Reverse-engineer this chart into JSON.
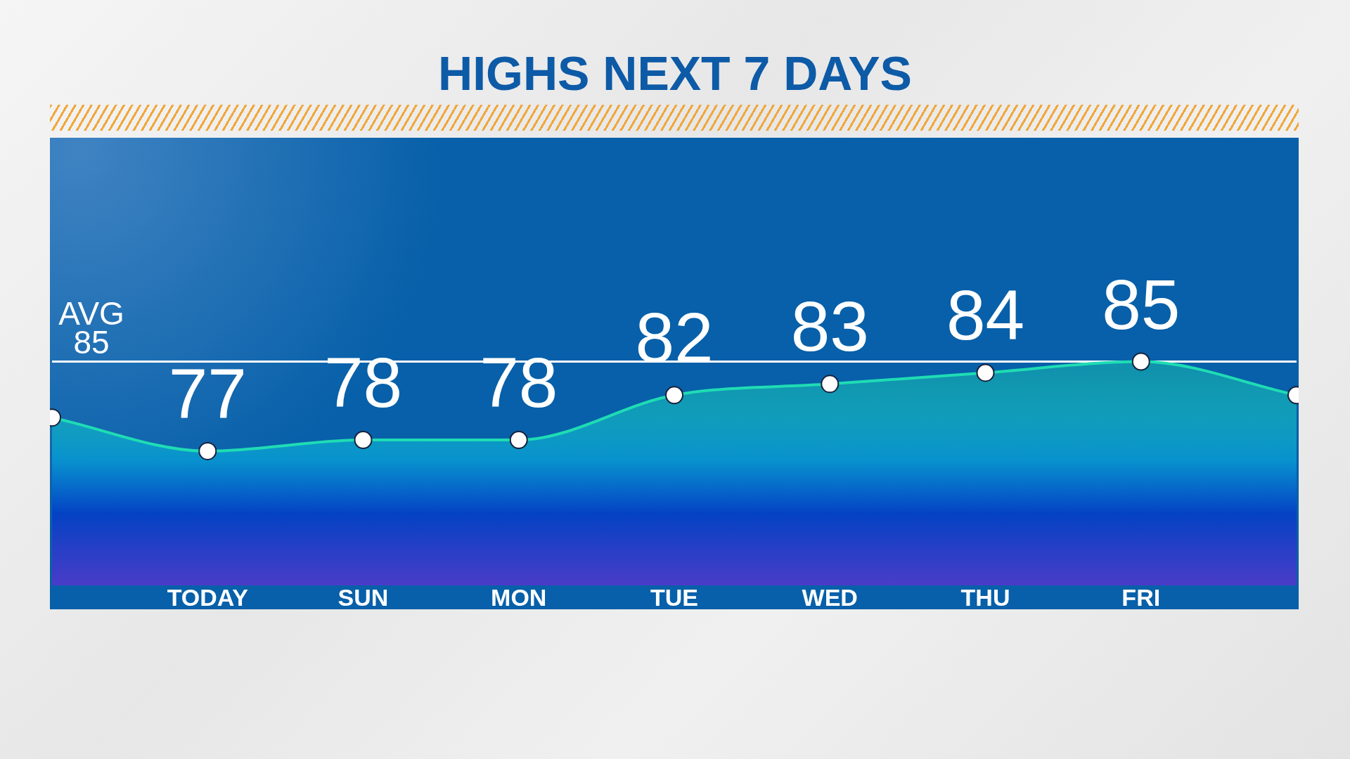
{
  "chart_data": {
    "type": "area",
    "title": "HIGHS NEXT 7 DAYS",
    "categories": [
      null,
      "TODAY",
      "SUN",
      "MON",
      "TUE",
      "WED",
      "THU",
      "FRI",
      null
    ],
    "series": [
      {
        "color": "#1fdcb4",
        "values": [
          80,
          77,
          78,
          78,
          82,
          83,
          84,
          85,
          82
        ],
        "value_labels": [
          null,
          "77",
          "78",
          "78",
          "82",
          "83",
          "84",
          "85",
          null
        ]
      }
    ],
    "tick_labels": "x",
    "marker": "circle",
    "line_style": "solid",
    "ref_lines": [
      {
        "axis": "y",
        "value": 85,
        "label": "AVG 85",
        "color": "#ffffff",
        "line_style": "solid"
      }
    ]
  }
}
